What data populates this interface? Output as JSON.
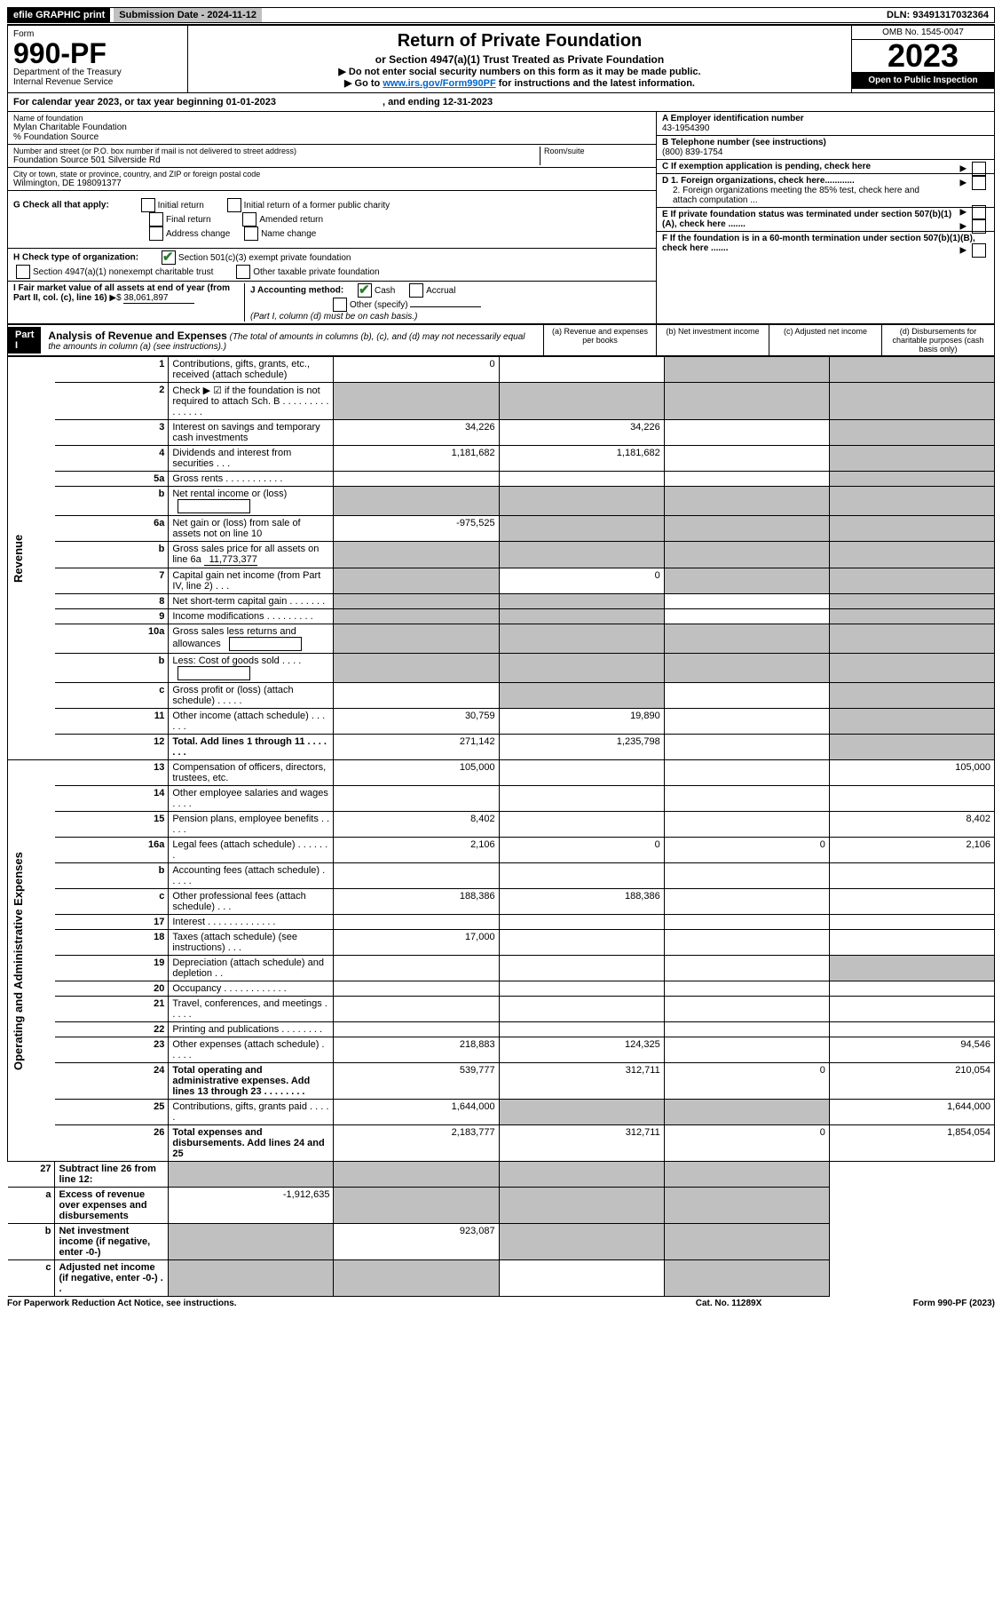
{
  "top": {
    "efile": "efile GRAPHIC print",
    "submission": "Submission Date - 2024-11-12",
    "dln": "DLN: 93491317032364"
  },
  "header": {
    "form_label": "Form",
    "form_no": "990-PF",
    "dept": "Department of the Treasury",
    "irs": "Internal Revenue Service",
    "title": "Return of Private Foundation",
    "subtitle": "or Section 4947(a)(1) Trust Treated as Private Foundation",
    "note1": "▶ Do not enter social security numbers on this form as it may be made public.",
    "note2_pre": "▶ Go to ",
    "note2_link": "www.irs.gov/Form990PF",
    "note2_post": " for instructions and the latest information.",
    "omb": "OMB No. 1545-0047",
    "year": "2023",
    "open": "Open to Public Inspection"
  },
  "calyear": {
    "pre": "For calendar year 2023, or tax year beginning ",
    "begin": "01-01-2023",
    "mid": ", and ending ",
    "end": "12-31-2023"
  },
  "info": {
    "name_lbl": "Name of foundation",
    "name": "Mylan Charitable Foundation",
    "co": "% Foundation Source",
    "addr_lbl": "Number and street (or P.O. box number if mail is not delivered to street address)",
    "addr": "Foundation Source 501 Silverside Rd",
    "room_lbl": "Room/suite",
    "city_lbl": "City or town, state or province, country, and ZIP or foreign postal code",
    "city": "Wilmington, DE  198091377",
    "ein_lbl": "A Employer identification number",
    "ein": "43-1954390",
    "tel_lbl": "B Telephone number (see instructions)",
    "tel": "(800) 839-1754",
    "c": "C If exemption application is pending, check here",
    "d1": "D 1. Foreign organizations, check here............",
    "d2": "2. Foreign organizations meeting the 85% test, check here and attach computation ...",
    "e": "E  If private foundation status was terminated under section 507(b)(1)(A), check here .......",
    "f": "F  If the foundation is in a 60-month termination under section 507(b)(1)(B), check here .......",
    "g_lbl": "G Check all that apply:",
    "g_opts": [
      "Initial return",
      "Initial return of a former public charity",
      "Final return",
      "Amended return",
      "Address change",
      "Name change"
    ],
    "h_lbl": "H Check type of organization:",
    "h1": "Section 501(c)(3) exempt private foundation",
    "h2": "Section 4947(a)(1) nonexempt charitable trust",
    "h3": "Other taxable private foundation",
    "i_lbl": "I Fair market value of all assets at end of year (from Part II, col. (c), line 16)",
    "i_val": "38,061,897",
    "j_lbl": "J Accounting method:",
    "j_cash": "Cash",
    "j_accr": "Accrual",
    "j_other": "Other (specify)",
    "j_note": "(Part I, column (d) must be on cash basis.)"
  },
  "part1": {
    "label": "Part I",
    "title": "Analysis of Revenue and Expenses",
    "note": "(The total of amounts in columns (b), (c), and (d) may not necessarily equal the amounts in column (a) (see instructions).)",
    "col_a": "(a)   Revenue and expenses per books",
    "col_b": "(b)   Net investment income",
    "col_c": "(c)   Adjusted net income",
    "col_d": "(d)   Disbursements for charitable purposes (cash basis only)"
  },
  "side": {
    "revenue": "Revenue",
    "expenses": "Operating and Administrative Expenses"
  },
  "rows": [
    {
      "n": "1",
      "d": "Contributions, gifts, grants, etc., received (attach schedule)",
      "a": "0",
      "b": "",
      "c": "blank",
      "dd": "blank"
    },
    {
      "n": "2",
      "d": "Check ▶ ☑ if the foundation is not required to attach Sch. B  .  .  .  .  .  .  .  .  .  .  .  .  .  .  .",
      "a": "blank",
      "b": "blank",
      "c": "blank",
      "dd": "blank",
      "bold_check": true
    },
    {
      "n": "3",
      "d": "Interest on savings and temporary cash investments",
      "a": "34,226",
      "b": "34,226",
      "c": "",
      "dd": "blank"
    },
    {
      "n": "4",
      "d": "Dividends and interest from securities  .  .  .",
      "a": "1,181,682",
      "b": "1,181,682",
      "c": "",
      "dd": "blank"
    },
    {
      "n": "5a",
      "d": "Gross rents  .  .  .  .  .  .  .  .  .  .  .",
      "a": "",
      "b": "",
      "c": "",
      "dd": "blank"
    },
    {
      "n": "b",
      "d": "Net rental income or (loss) ",
      "a": "blank",
      "b": "blank",
      "c": "blank",
      "dd": "blank",
      "inline_box": true
    },
    {
      "n": "6a",
      "d": "Net gain or (loss) from sale of assets not on line 10",
      "a": "-975,525",
      "b": "blank",
      "c": "blank",
      "dd": "blank"
    },
    {
      "n": "b",
      "d": "Gross sales price for all assets on line 6a",
      "a": "blank",
      "b": "blank",
      "c": "blank",
      "dd": "blank",
      "inline_val": "11,773,377"
    },
    {
      "n": "7",
      "d": "Capital gain net income (from Part IV, line 2)  .  .  .",
      "a": "blank",
      "b": "0",
      "c": "blank",
      "dd": "blank"
    },
    {
      "n": "8",
      "d": "Net short-term capital gain  .  .  .  .  .  .  .",
      "a": "blank",
      "b": "blank",
      "c": "",
      "dd": "blank"
    },
    {
      "n": "9",
      "d": "Income modifications  .  .  .  .  .  .  .  .  .",
      "a": "blank",
      "b": "blank",
      "c": "",
      "dd": "blank"
    },
    {
      "n": "10a",
      "d": "Gross sales less returns and allowances",
      "a": "blank",
      "b": "blank",
      "c": "blank",
      "dd": "blank",
      "inline_box": true
    },
    {
      "n": "b",
      "d": "Less: Cost of goods sold  .  .  .  .",
      "a": "blank",
      "b": "blank",
      "c": "blank",
      "dd": "blank",
      "inline_box": true
    },
    {
      "n": "c",
      "d": "Gross profit or (loss) (attach schedule)  .  .  .  .  .",
      "a": "",
      "b": "blank",
      "c": "",
      "dd": "blank"
    },
    {
      "n": "11",
      "d": "Other income (attach schedule)  .  .  .  .  .  .",
      "a": "30,759",
      "b": "19,890",
      "c": "",
      "dd": "blank"
    },
    {
      "n": "12",
      "d": "Total. Add lines 1 through 11  .  .  .  .  .  .  .",
      "a": "271,142",
      "b": "1,235,798",
      "c": "",
      "dd": "blank",
      "bold": true
    }
  ],
  "exp_rows": [
    {
      "n": "13",
      "d": "Compensation of officers, directors, trustees, etc.",
      "a": "105,000",
      "b": "",
      "c": "",
      "dd": "105,000"
    },
    {
      "n": "14",
      "d": "Other employee salaries and wages  .  .  .  .",
      "a": "",
      "b": "",
      "c": "",
      "dd": ""
    },
    {
      "n": "15",
      "d": "Pension plans, employee benefits  .  .  .  .  .",
      "a": "8,402",
      "b": "",
      "c": "",
      "dd": "8,402"
    },
    {
      "n": "16a",
      "d": "Legal fees (attach schedule)  .  .  .  .  .  .  .",
      "a": "2,106",
      "b": "0",
      "c": "0",
      "dd": "2,106"
    },
    {
      "n": "b",
      "d": "Accounting fees (attach schedule)  .  .  .  .  .",
      "a": "",
      "b": "",
      "c": "",
      "dd": ""
    },
    {
      "n": "c",
      "d": "Other professional fees (attach schedule)  .  .  .",
      "a": "188,386",
      "b": "188,386",
      "c": "",
      "dd": ""
    },
    {
      "n": "17",
      "d": "Interest  .  .  .  .  .  .  .  .  .  .  .  .  .",
      "a": "",
      "b": "",
      "c": "",
      "dd": ""
    },
    {
      "n": "18",
      "d": "Taxes (attach schedule) (see instructions)  .  .  .",
      "a": "17,000",
      "b": "",
      "c": "",
      "dd": ""
    },
    {
      "n": "19",
      "d": "Depreciation (attach schedule) and depletion  .  .",
      "a": "",
      "b": "",
      "c": "",
      "dd": "blank"
    },
    {
      "n": "20",
      "d": "Occupancy  .  .  .  .  .  .  .  .  .  .  .  .",
      "a": "",
      "b": "",
      "c": "",
      "dd": ""
    },
    {
      "n": "21",
      "d": "Travel, conferences, and meetings  .  .  .  .  .",
      "a": "",
      "b": "",
      "c": "",
      "dd": ""
    },
    {
      "n": "22",
      "d": "Printing and publications  .  .  .  .  .  .  .  .",
      "a": "",
      "b": "",
      "c": "",
      "dd": ""
    },
    {
      "n": "23",
      "d": "Other expenses (attach schedule)  .  .  .  .  .",
      "a": "218,883",
      "b": "124,325",
      "c": "",
      "dd": "94,546"
    },
    {
      "n": "24",
      "d": "Total operating and administrative expenses. Add lines 13 through 23  .  .  .  .  .  .  .  .",
      "a": "539,777",
      "b": "312,711",
      "c": "0",
      "dd": "210,054",
      "bold": true
    },
    {
      "n": "25",
      "d": "Contributions, gifts, grants paid  .  .  .  .  .",
      "a": "1,644,000",
      "b": "blank",
      "c": "blank",
      "dd": "1,644,000"
    },
    {
      "n": "26",
      "d": "Total expenses and disbursements. Add lines 24 and 25",
      "a": "2,183,777",
      "b": "312,711",
      "c": "0",
      "dd": "1,854,054",
      "bold": true
    }
  ],
  "net_rows": [
    {
      "n": "27",
      "d": "Subtract line 26 from line 12:",
      "a": "blank",
      "b": "blank",
      "c": "blank",
      "dd": "blank",
      "bold": true
    },
    {
      "n": "a",
      "d": "Excess of revenue over expenses and disbursements",
      "a": "-1,912,635",
      "b": "blank",
      "c": "blank",
      "dd": "blank",
      "bold": true
    },
    {
      "n": "b",
      "d": "Net investment income (if negative, enter -0-)",
      "a": "blank",
      "b": "923,087",
      "c": "blank",
      "dd": "blank",
      "bold": true
    },
    {
      "n": "c",
      "d": "Adjusted net income (if negative, enter -0-)  .  .",
      "a": "blank",
      "b": "blank",
      "c": "",
      "dd": "blank",
      "bold": true
    }
  ],
  "footer": {
    "left": "For Paperwork Reduction Act Notice, see instructions.",
    "mid": "Cat. No. 11289X",
    "right": "Form 990-PF (2023)"
  }
}
